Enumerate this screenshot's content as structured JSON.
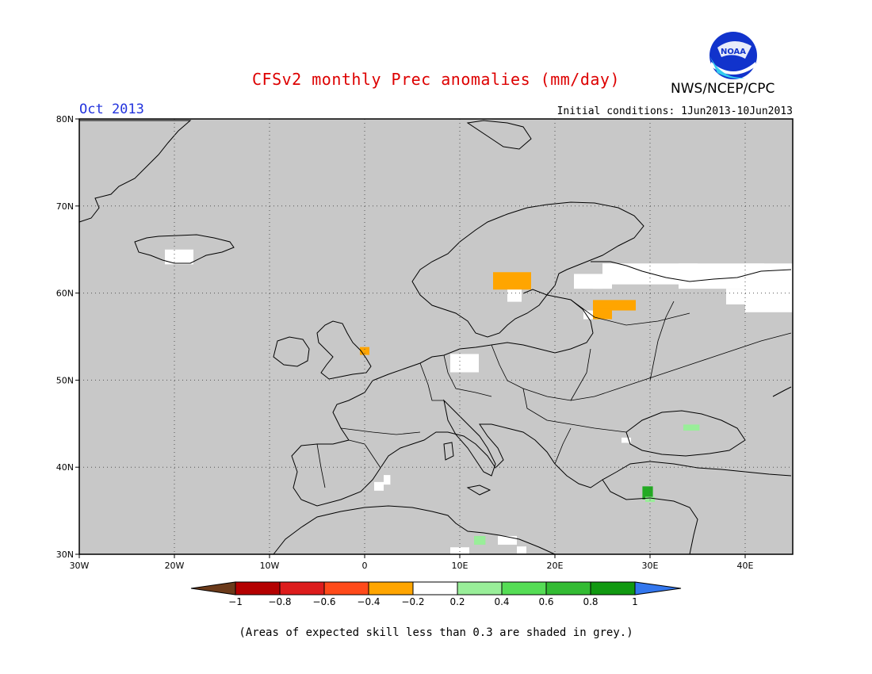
{
  "header": {
    "title": "CFSv2 monthly Prec anomalies (mm/day)",
    "agency": "NWS/NCEP/CPC",
    "logo_text": "NOAA",
    "month": "Oct 2013",
    "initial_conditions": "Initial conditions: 1Jun2013-10Jun2013"
  },
  "map": {
    "lon_range": [
      -30,
      45
    ],
    "lat_range": [
      30,
      80
    ],
    "background": "#c8c8c8",
    "lon_ticks": [
      {
        "value": -30,
        "label": "30W"
      },
      {
        "value": -20,
        "label": "20W"
      },
      {
        "value": -10,
        "label": "10W"
      },
      {
        "value": 0,
        "label": "0"
      },
      {
        "value": 10,
        "label": "10E"
      },
      {
        "value": 20,
        "label": "20E"
      },
      {
        "value": 30,
        "label": "30E"
      },
      {
        "value": 40,
        "label": "40E"
      }
    ],
    "lat_ticks": [
      {
        "value": 80,
        "label": "80N"
      },
      {
        "value": 70,
        "label": "70N"
      },
      {
        "value": 60,
        "label": "60N"
      },
      {
        "value": 50,
        "label": "50N"
      },
      {
        "value": 40,
        "label": "40N"
      },
      {
        "value": 30,
        "label": "30N"
      }
    ],
    "anomaly_cells": [
      {
        "lon": [
          -21,
          -18
        ],
        "lat": [
          63.3,
          65.0
        ],
        "color": "#ffffff"
      },
      {
        "lon": [
          13.5,
          17.5
        ],
        "lat": [
          60.4,
          62.4
        ],
        "color": "#ffa500"
      },
      {
        "lon": [
          15,
          16.5
        ],
        "lat": [
          59.0,
          60.4
        ],
        "color": "#ffffff"
      },
      {
        "lon": [
          24,
          28.5
        ],
        "lat": [
          58.0,
          59.2
        ],
        "color": "#ffa500"
      },
      {
        "lon": [
          24,
          26
        ],
        "lat": [
          57.0,
          58.2
        ],
        "color": "#ffa500"
      },
      {
        "lon": [
          23,
          24
        ],
        "lat": [
          57.0,
          58.0
        ],
        "color": "#ffffff"
      },
      {
        "lon": [
          -0.5,
          0.5
        ],
        "lat": [
          52.9,
          53.8
        ],
        "color": "#ffa500"
      },
      {
        "lon": [
          9,
          12
        ],
        "lat": [
          50.9,
          53.0
        ],
        "color": "#ffffff"
      },
      {
        "lon": [
          22,
          25
        ],
        "lat": [
          60.5,
          62.2
        ],
        "color": "#ffffff"
      },
      {
        "lon": [
          25,
          35
        ],
        "lat": [
          61.0,
          63.4
        ],
        "color": "#ffffff"
      },
      {
        "lon": [
          33,
          42
        ],
        "lat": [
          60.5,
          63.4
        ],
        "color": "#ffffff"
      },
      {
        "lon": [
          40,
          45
        ],
        "lat": [
          57.8,
          63.4
        ],
        "color": "#ffffff"
      },
      {
        "lon": [
          38,
          40
        ],
        "lat": [
          58.7,
          60.5
        ],
        "color": "#ffffff"
      },
      {
        "lon": [
          24,
          26
        ],
        "lat": [
          60.5,
          61.4
        ],
        "color": "#ffffff"
      },
      {
        "lon": [
          1,
          2
        ],
        "lat": [
          37.3,
          38.3
        ],
        "color": "#ffffff"
      },
      {
        "lon": [
          2,
          2.7
        ],
        "lat": [
          38.0,
          39.1
        ],
        "color": "#ffffff"
      },
      {
        "lon": [
          29.2,
          30.3
        ],
        "lat": [
          36.3,
          37.8
        ],
        "color": "#22aa22"
      },
      {
        "lon": [
          29.5,
          30.5
        ],
        "lat": [
          36.0,
          36.6
        ],
        "color": "#99ee99"
      },
      {
        "lon": [
          33.5,
          35.2
        ],
        "lat": [
          44.2,
          44.9
        ],
        "color": "#99ee99"
      },
      {
        "lon": [
          27,
          28
        ],
        "lat": [
          42.8,
          43.4
        ],
        "color": "#ffffff"
      },
      {
        "lon": [
          11.5,
          12.7
        ],
        "lat": [
          31.1,
          32.1
        ],
        "color": "#99ee99"
      },
      {
        "lon": [
          14,
          16
        ],
        "lat": [
          31.1,
          32.1
        ],
        "color": "#ffffff"
      },
      {
        "lon": [
          16,
          17
        ],
        "lat": [
          30.1,
          30.9
        ],
        "color": "#ffffff"
      },
      {
        "lon": [
          9,
          11
        ],
        "lat": [
          30.0,
          30.8
        ],
        "color": "#ffffff"
      }
    ]
  },
  "colorbar": {
    "labels": [
      "−1",
      "−0.8",
      "−0.6",
      "−0.4",
      "−0.2",
      "0.2",
      "0.4",
      "0.6",
      "0.8",
      "1"
    ],
    "colors": [
      "#6b3a1a",
      "#b40000",
      "#dd1c1c",
      "#ff4a1a",
      "#ffa500",
      "#ffffff",
      "#99ee99",
      "#55dd55",
      "#33bb33",
      "#119911",
      "#3377ee"
    ]
  },
  "footer": {
    "note": "(Areas of expected skill less than 0.3 are shaded in grey.)"
  }
}
